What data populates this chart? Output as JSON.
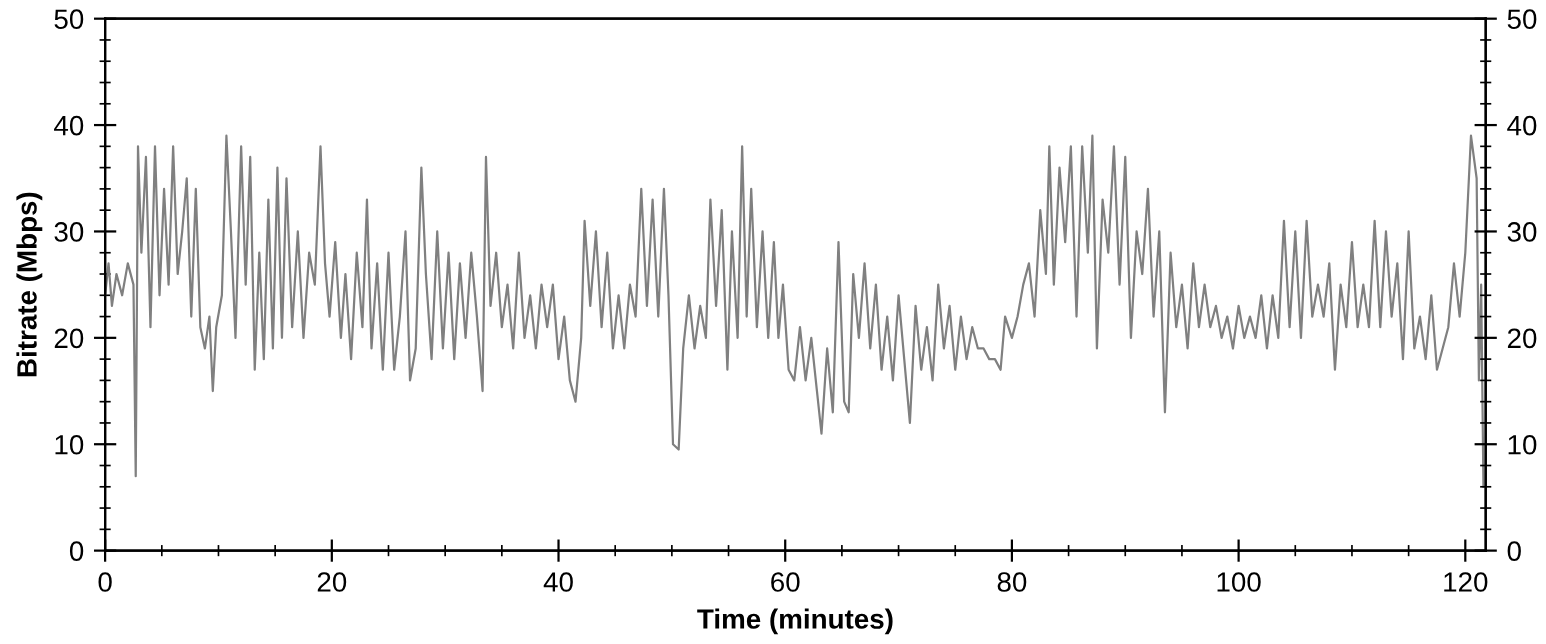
{
  "chart_data": {
    "type": "line",
    "xlabel": "Time (minutes)",
    "ylabel": "Bitrate (Mbps)",
    "xlim": [
      0,
      121.8
    ],
    "xticks": [
      0,
      20,
      40,
      60,
      80,
      100,
      120
    ],
    "ylim": [
      0,
      50
    ],
    "yticks": [
      0,
      10,
      20,
      30,
      40,
      50
    ],
    "y2lim": [
      0,
      50
    ],
    "y2ticks": [
      0,
      10,
      20,
      30,
      40,
      50
    ],
    "grid": false,
    "legend": false,
    "marker": "none",
    "line_style": "solid",
    "series": [
      {
        "color": "#808080",
        "x": [
          0,
          0.3,
          0.6,
          1,
          1.5,
          2,
          2.5,
          2.7,
          2.9,
          3.2,
          3.6,
          4,
          4.4,
          4.8,
          5.2,
          5.6,
          6,
          6.4,
          6.8,
          7.2,
          7.6,
          8,
          8.4,
          8.8,
          9.2,
          9.5,
          9.8,
          10.3,
          10.7,
          11.1,
          11.5,
          12,
          12.4,
          12.8,
          13.2,
          13.6,
          14,
          14.4,
          14.8,
          15.2,
          15.6,
          16,
          16.5,
          17,
          17.5,
          18,
          18.5,
          19,
          19.4,
          19.8,
          20.3,
          20.8,
          21.2,
          21.7,
          22.2,
          22.7,
          23.1,
          23.5,
          24,
          24.5,
          25,
          25.5,
          26,
          26.5,
          26.9,
          27.4,
          27.9,
          28.3,
          28.8,
          29.3,
          29.8,
          30.3,
          30.8,
          31.3,
          31.8,
          32.3,
          32.8,
          33.3,
          33.6,
          34,
          34.5,
          35,
          35.5,
          36,
          36.5,
          37,
          37.5,
          38,
          38.5,
          39,
          39.5,
          40,
          40.5,
          41,
          41.5,
          42,
          42.3,
          42.8,
          43.3,
          43.8,
          44.3,
          44.8,
          45.3,
          45.8,
          46.3,
          46.8,
          47.3,
          47.8,
          48.3,
          48.8,
          49.3,
          49.7,
          50.1,
          50.6,
          51,
          51.5,
          52,
          52.5,
          53,
          53.4,
          53.9,
          54.4,
          54.9,
          55.3,
          55.8,
          56.2,
          56.6,
          57,
          57.5,
          58,
          58.5,
          59,
          59.4,
          59.8,
          60.3,
          60.8,
          61.3,
          61.8,
          62.3,
          62.8,
          63.2,
          63.7,
          64.2,
          64.7,
          65.2,
          65.6,
          66,
          66.5,
          67,
          67.5,
          68,
          68.5,
          69,
          69.5,
          70,
          70.5,
          71,
          71.5,
          72,
          72.5,
          73,
          73.5,
          74,
          74.5,
          75,
          75.5,
          76,
          76.5,
          77,
          77.5,
          78,
          78.5,
          79,
          79.4,
          80,
          80.5,
          81,
          81.5,
          82,
          82.5,
          83,
          83.3,
          83.7,
          84.2,
          84.7,
          85.2,
          85.7,
          86.2,
          86.7,
          87.1,
          87.5,
          88,
          88.5,
          89,
          89.5,
          90,
          90.5,
          91,
          91.5,
          92,
          92.5,
          93,
          93.5,
          94,
          94.5,
          95,
          95.5,
          96,
          96.5,
          97,
          97.5,
          98,
          98.5,
          99,
          99.5,
          100,
          100.5,
          101,
          101.5,
          102,
          102.5,
          103,
          103.5,
          104,
          104.5,
          105,
          105.5,
          106,
          106.5,
          107,
          107.5,
          108,
          108.5,
          109,
          109.5,
          110,
          110.5,
          111,
          111.5,
          112,
          112.5,
          113,
          113.5,
          114,
          114.5,
          115,
          115.5,
          116,
          116.5,
          117,
          117.5,
          118,
          118.5,
          119,
          119.5,
          120,
          120.5,
          121,
          121.2,
          121.4,
          121.6
        ],
        "values": [
          24,
          27,
          23,
          26,
          24,
          27,
          25,
          7,
          38,
          28,
          37,
          21,
          38,
          24,
          34,
          25,
          38,
          26,
          30,
          35,
          22,
          34,
          21,
          19,
          22,
          15,
          21,
          24,
          39,
          30,
          20,
          38,
          25,
          37,
          17,
          28,
          18,
          33,
          19,
          36,
          20,
          35,
          21,
          30,
          20,
          28,
          25,
          38,
          27,
          22,
          29,
          20,
          26,
          18,
          28,
          21,
          33,
          19,
          27,
          17,
          28,
          17,
          22,
          30,
          16,
          19,
          36,
          26,
          18,
          30,
          19,
          28,
          18,
          27,
          20,
          28,
          22,
          15,
          37,
          23,
          28,
          21,
          25,
          19,
          28,
          20,
          24,
          19,
          25,
          21,
          25,
          18,
          22,
          16,
          14,
          20,
          31,
          23,
          30,
          21,
          28,
          19,
          24,
          19,
          25,
          22,
          34,
          23,
          33,
          22,
          34,
          24,
          10,
          9.5,
          19,
          24,
          19,
          23,
          20,
          33,
          23,
          32,
          17,
          30,
          20,
          38,
          22,
          34,
          21,
          30,
          20,
          29,
          20,
          25,
          17,
          16,
          21,
          16,
          20,
          15,
          11,
          19,
          13,
          29,
          14,
          13,
          26,
          20,
          27,
          19,
          25,
          17,
          22,
          16,
          24,
          18,
          12,
          23,
          17,
          21,
          16,
          25,
          19,
          23,
          17,
          22,
          18,
          21,
          19,
          19,
          18,
          18,
          17,
          22,
          20,
          22,
          25,
          27,
          22,
          32,
          26,
          38,
          25,
          36,
          29,
          38,
          22,
          38,
          28,
          39,
          19,
          33,
          28,
          38,
          25,
          37,
          20,
          30,
          26,
          34,
          22,
          30,
          13,
          28,
          21,
          25,
          19,
          27,
          21,
          25,
          21,
          23,
          20,
          22,
          19,
          23,
          20,
          22,
          20,
          24,
          19,
          24,
          20,
          31,
          21,
          30,
          20,
          31,
          22,
          25,
          22,
          27,
          17,
          25,
          21,
          29,
          21,
          25,
          21,
          31,
          21,
          30,
          22,
          27,
          18,
          30,
          19,
          22,
          18,
          24,
          17,
          19,
          21,
          27,
          22,
          28,
          39,
          35,
          16,
          25,
          6
        ]
      }
    ]
  }
}
